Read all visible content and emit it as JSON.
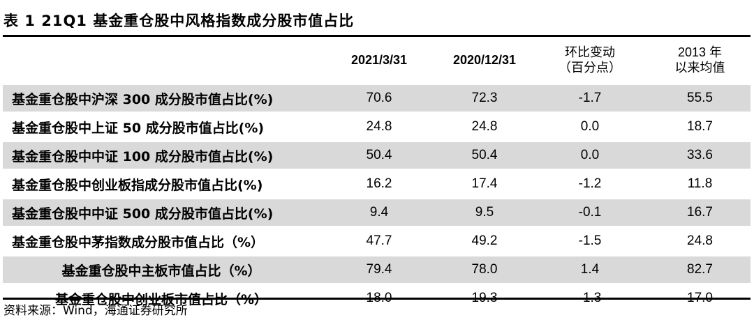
{
  "title": "表 1 21Q1 基金重仓股中风格指数成分股市值占比",
  "columns": {
    "c1": "2021/3/31",
    "c2": "2020/12/31",
    "c3_line1": "环比变动",
    "c3_line2": "（百分点）",
    "c4_line1": "2013 年",
    "c4_line2": "以来均值"
  },
  "rows": [
    {
      "label": "基金重仓股中沪深 300 成分股市值占比(%)",
      "v1": "70.6",
      "v2": "72.3",
      "v3": "-1.7",
      "v4": "55.5"
    },
    {
      "label": "基金重仓股中上证 50 成分股市值占比(%)",
      "v1": "24.8",
      "v2": "24.8",
      "v3": "0.0",
      "v4": "18.7"
    },
    {
      "label": "基金重仓股中中证 100 成分股市值占比(%)",
      "v1": "50.4",
      "v2": "50.4",
      "v3": "0.0",
      "v4": "33.6"
    },
    {
      "label": "基金重仓股中创业板指成分股市值占比(%)",
      "v1": "16.2",
      "v2": "17.4",
      "v3": "-1.2",
      "v4": "11.8"
    },
    {
      "label": "基金重仓股中中证 500 成分股市值占比(%)",
      "v1": "9.4",
      "v2": "9.5",
      "v3": "-0.1",
      "v4": "16.7"
    },
    {
      "label": "基金重仓股中茅指数成分股市值占比（%）",
      "v1": "47.7",
      "v2": "49.2",
      "v3": "-1.5",
      "v4": "24.8"
    },
    {
      "label": "基金重仓股中主板市值占比（%）",
      "v1": "79.4",
      "v2": "78.0",
      "v3": "1.4",
      "v4": "82.7"
    },
    {
      "label": "基金重仓股中创业板市值占比（%）",
      "v1": "18.0",
      "v2": "19.3",
      "v3": "-1.3",
      "v4": "17.0"
    }
  ],
  "source": "资料来源：Wind，海通证券研究所"
}
